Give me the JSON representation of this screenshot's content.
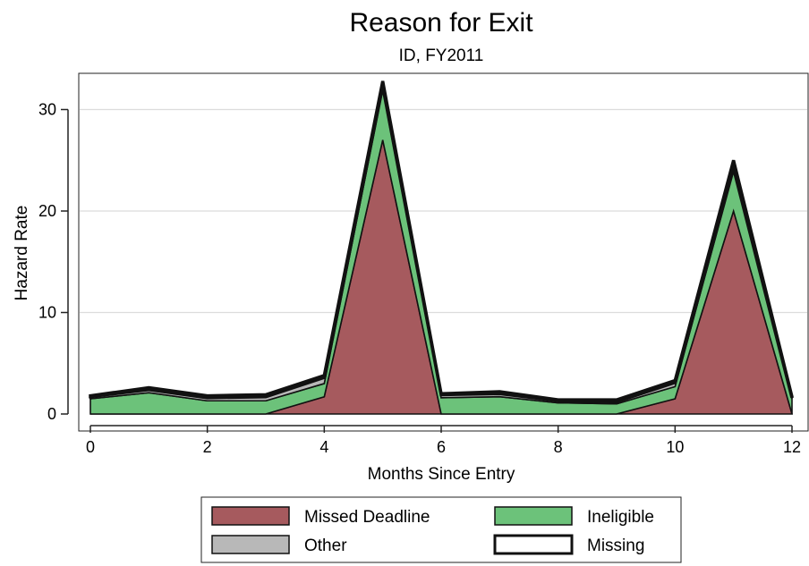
{
  "chart_data": {
    "type": "area",
    "stacked": true,
    "title": "Reason for Exit",
    "subtitle": "ID, FY2011",
    "xlabel": "Months Since Entry",
    "ylabel": "Hazard Rate",
    "x": [
      0,
      1,
      2,
      3,
      4,
      5,
      6,
      7,
      8,
      9,
      10,
      11,
      12
    ],
    "xticks": [
      0,
      2,
      4,
      6,
      8,
      10,
      12
    ],
    "yticks": [
      0,
      10,
      20,
      30
    ],
    "xlim": [
      0,
      12
    ],
    "ylim": [
      0,
      33
    ],
    "grid": true,
    "legend_position": "bottom",
    "series": [
      {
        "name": "Missed Deadline",
        "color": "#a65a5e",
        "values": [
          0,
          0,
          0,
          0,
          1.7,
          27,
          0,
          0,
          0,
          0,
          1.5,
          20,
          0
        ]
      },
      {
        "name": "Ineligible",
        "color": "#6cc27a",
        "values": [
          1.5,
          2.1,
          1.3,
          1.3,
          1.3,
          5.0,
          1.6,
          1.7,
          1.1,
          1.0,
          1.2,
          4.0,
          1.5
        ]
      },
      {
        "name": "Other",
        "color": "#b8b8b8",
        "values": [
          0.2,
          0.3,
          0.3,
          0.4,
          0.6,
          0.3,
          0.3,
          0.3,
          0.2,
          0.2,
          0.4,
          0.2,
          0.1
        ]
      },
      {
        "name": "Missing",
        "color": "#ffffff",
        "values": [
          0.1,
          0.2,
          0.2,
          0.2,
          0.2,
          0.5,
          0.1,
          0.2,
          0.1,
          0.2,
          0.2,
          0.8,
          0.1
        ]
      }
    ],
    "legend": [
      {
        "name": "Missed Deadline",
        "color": "#a65a5e"
      },
      {
        "name": "Ineligible",
        "color": "#6cc27a"
      },
      {
        "name": "Other",
        "color": "#b8b8b8"
      },
      {
        "name": "Missing",
        "color": "#ffffff"
      }
    ]
  }
}
